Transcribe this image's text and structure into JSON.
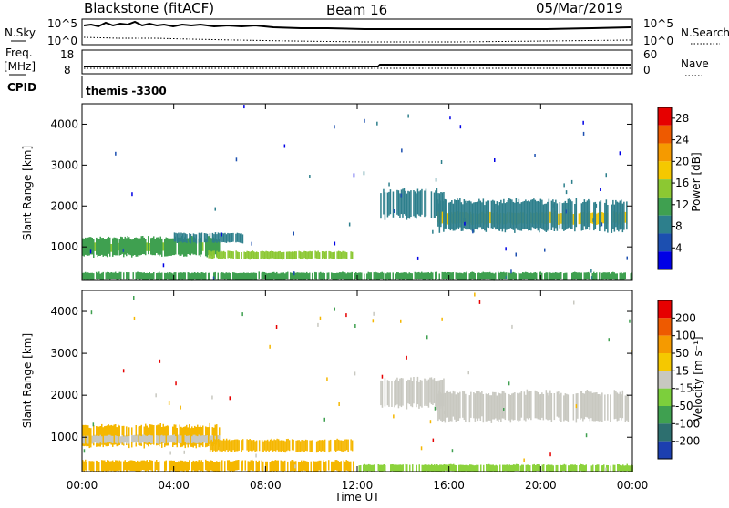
{
  "header": {
    "title": "Blackstone (fitACF)",
    "beam": "Beam 16",
    "date": "05/Mar/2019"
  },
  "panels": {
    "noise": {
      "left_label": "N.Sky",
      "right_label": "N.Search",
      "left_ticks": [
        "10^5",
        "10^0"
      ],
      "right_ticks": [
        "10^5",
        "10^0"
      ]
    },
    "freq": {
      "left_label_1": "Freq.",
      "left_label_2": "[MHz]",
      "right_label": "Nave",
      "left_ticks": [
        "18",
        "8"
      ],
      "right_ticks": [
        "60",
        "0"
      ]
    },
    "cpid": {
      "label": "CPID",
      "text": "themis -3300"
    }
  },
  "chart_data": [
    {
      "type": "heatmap",
      "parameter": "Power",
      "ylabel": "Slant Range [km]",
      "colorbar_label": "Power [dB]",
      "y_ticks": [
        "1000",
        "2000",
        "3000",
        "4000"
      ],
      "ylim": [
        180,
        4500
      ],
      "colorbar_ticks": [
        "4",
        "8",
        "12",
        "16",
        "20",
        "24",
        "28"
      ],
      "colorbar_range": [
        0,
        30
      ],
      "colors": [
        "#0000e6",
        "#1c4fb0",
        "#2d7f8c",
        "#3fa050",
        "#8cc832",
        "#f5c800",
        "#f59a00",
        "#ee5a00",
        "#e60000"
      ],
      "bands": [
        {
          "from": 0.0,
          "to": 6.0,
          "r0": 880,
          "r1": 1100,
          "level": 16
        },
        {
          "from": 0.0,
          "to": 6.0,
          "r0": 770,
          "r1": 1250,
          "level": 10
        },
        {
          "from": 5.5,
          "to": 11.8,
          "r0": 700,
          "r1": 900,
          "level": 14
        },
        {
          "from": 4.0,
          "to": 7.0,
          "r0": 1100,
          "r1": 1350,
          "level": 8
        },
        {
          "from": 13.0,
          "to": 15.8,
          "r0": 1700,
          "r1": 2400,
          "level": 8
        },
        {
          "from": 15.5,
          "to": 23.8,
          "r0": 1550,
          "r1": 1850,
          "level": 18
        },
        {
          "from": 15.5,
          "to": 23.8,
          "r0": 1380,
          "r1": 2150,
          "level": 9
        },
        {
          "from": 0.0,
          "to": 24.0,
          "r0": 180,
          "r1": 380,
          "level": 12
        }
      ]
    },
    {
      "type": "heatmap",
      "parameter": "Velocity",
      "ylabel": "Slant Range [km]",
      "xlabel": "Time UT",
      "colorbar_label": "Velocity [m s⁻¹]",
      "y_ticks": [
        "1000",
        "2000",
        "3000",
        "4000"
      ],
      "ylim": [
        180,
        4500
      ],
      "x_ticks": [
        "00:00",
        "04:00",
        "08:00",
        "12:00",
        "16:00",
        "20:00",
        "00:00"
      ],
      "xlim": [
        0,
        24
      ],
      "colorbar_ticks": [
        "200",
        "100",
        "50",
        "15",
        "-15",
        "-50",
        "-100",
        "-200"
      ],
      "colors": [
        "#1c3fb0",
        "#2d6f6f",
        "#3fa050",
        "#7ccf3c",
        "#c8c8c0",
        "#f5c800",
        "#f59a00",
        "#ee5a00",
        "#e60000"
      ],
      "bands": [
        {
          "from": 0.0,
          "to": 6.0,
          "r0": 770,
          "r1": 1300,
          "color": "#f5b700"
        },
        {
          "from": 0.0,
          "to": 6.0,
          "r0": 850,
          "r1": 1050,
          "color": "#c8c8c0"
        },
        {
          "from": 5.5,
          "to": 11.8,
          "r0": 650,
          "r1": 950,
          "color": "#f5b700"
        },
        {
          "from": 13.0,
          "to": 15.8,
          "r0": 1700,
          "r1": 2400,
          "color": "#c8c8c0"
        },
        {
          "from": 15.5,
          "to": 23.8,
          "r0": 1380,
          "r1": 2100,
          "color": "#c8c8c0"
        },
        {
          "from": 0.0,
          "to": 12.0,
          "r0": 180,
          "r1": 450,
          "color": "#f5b700"
        },
        {
          "from": 12.0,
          "to": 24.0,
          "r0": 180,
          "r1": 350,
          "color": "#8cd23c"
        }
      ]
    }
  ]
}
